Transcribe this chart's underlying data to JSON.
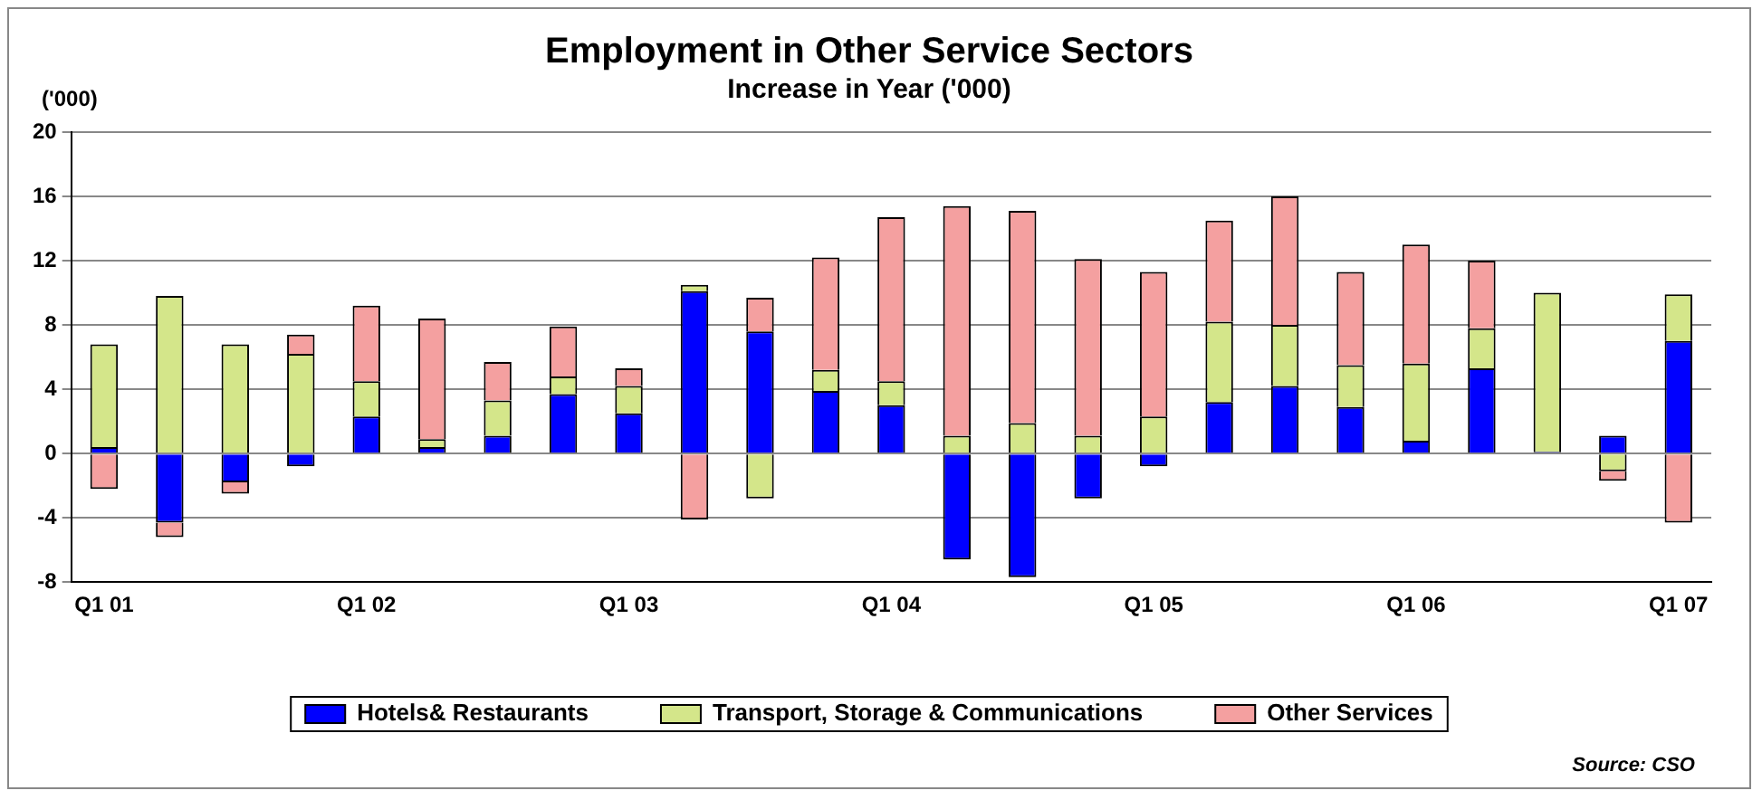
{
  "chart_data": {
    "type": "bar",
    "title": "Employment in Other Service Sectors",
    "subtitle": "Increase in Year ('000)",
    "ylabel": "('000)",
    "categories": [
      "Q1 01",
      null,
      null,
      null,
      "Q1 02",
      null,
      null,
      null,
      "Q1 03",
      null,
      null,
      null,
      "Q1 04",
      null,
      null,
      null,
      "Q1 05",
      null,
      null,
      null,
      "Q1 06",
      null,
      null,
      null,
      "Q1 07"
    ],
    "series": [
      {
        "name": "Hotels& Restaurants",
        "color": "#0000ff",
        "values": [
          0.4,
          -4.3,
          -1.8,
          -0.8,
          2.3,
          0.4,
          1.1,
          3.7,
          2.5,
          10.1,
          7.6,
          3.9,
          3.0,
          -6.6,
          -7.7,
          -2.8,
          -0.8,
          3.2,
          4.2,
          2.9,
          0.8,
          5.3,
          0.1,
          1.1,
          7.0
        ]
      },
      {
        "name": "Transport, Storage & Communications",
        "color": "#d4e68a",
        "values": [
          6.4,
          9.8,
          6.8,
          6.2,
          2.2,
          0.5,
          2.2,
          1.1,
          1.7,
          0.4,
          -2.8,
          1.3,
          1.5,
          1.1,
          1.9,
          1.1,
          2.3,
          5.0,
          3.8,
          2.6,
          4.8,
          2.5,
          9.9,
          -1.1,
          2.9
        ]
      },
      {
        "name": "Other Services",
        "color": "#f4a0a0",
        "values": [
          -2.2,
          -0.9,
          -0.7,
          1.2,
          4.7,
          7.5,
          2.4,
          3.1,
          1.1,
          -4.1,
          2.1,
          7.0,
          10.2,
          14.3,
          13.2,
          11.0,
          9.0,
          6.3,
          8.0,
          5.8,
          7.4,
          4.2,
          null,
          -0.6,
          -4.3
        ]
      }
    ],
    "stacked": true,
    "ylim": [
      -8,
      20
    ],
    "yticks": [
      -8,
      -4,
      0,
      4,
      8,
      12,
      16,
      20
    ],
    "grid": "y",
    "legend": "bottom",
    "annotations": [
      "Source: CSO"
    ]
  }
}
